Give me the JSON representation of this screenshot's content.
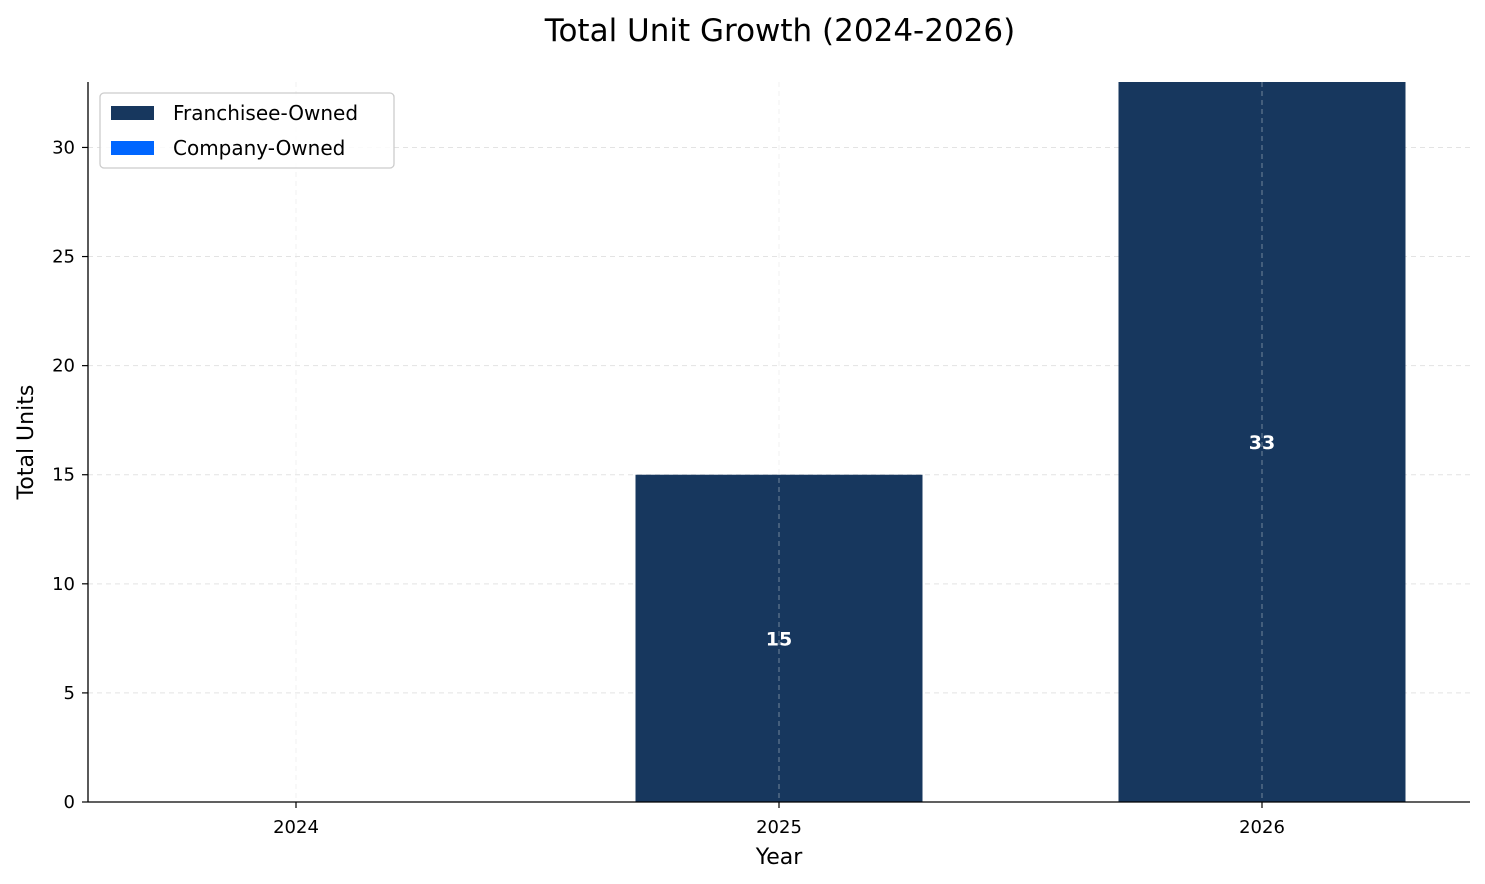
{
  "chart_data": {
    "type": "bar",
    "stacked": true,
    "title": "Total Unit Growth (2024-2026)",
    "xlabel": "Year",
    "ylabel": "Total Units",
    "categories": [
      "2024",
      "2025",
      "2026"
    ],
    "series": [
      {
        "name": "Franchisee-Owned",
        "color": "#17375e",
        "values": [
          0,
          15,
          33
        ]
      },
      {
        "name": "Company-Owned",
        "color": "#0066ff",
        "values": [
          0,
          0,
          0
        ]
      }
    ],
    "data_labels": [
      "",
      "15",
      "33"
    ],
    "ylim": [
      0,
      33
    ],
    "yticks": [
      0,
      5,
      10,
      15,
      20,
      25,
      30
    ],
    "grid": true,
    "legend_position": "top-left"
  }
}
